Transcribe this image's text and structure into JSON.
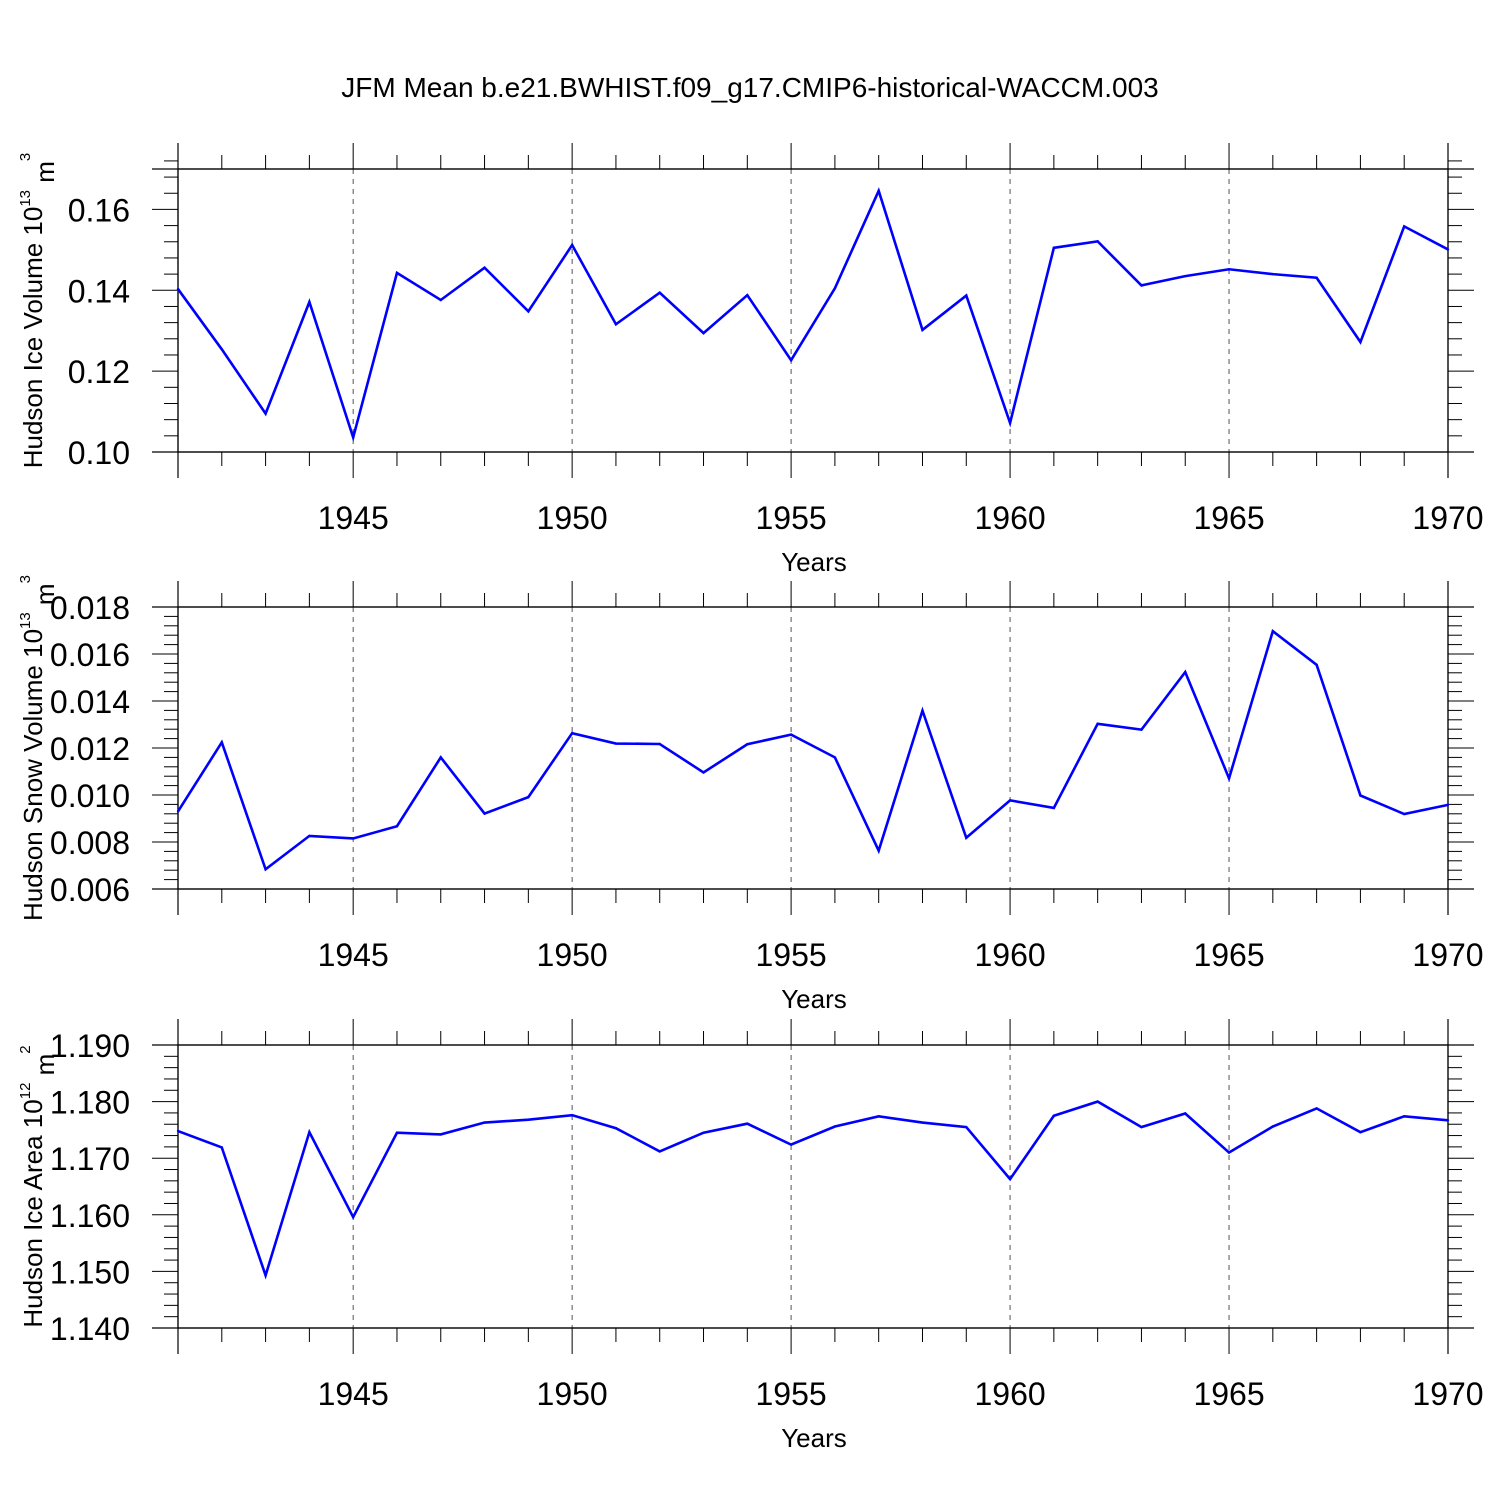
{
  "title": "JFM Mean b.e21.BWHIST.f09_g17.CMIP6-historical-WACCM.003",
  "colors": {
    "line": "#0000ff",
    "axes": "#000000",
    "grid": "#555555"
  },
  "chart_data": [
    {
      "type": "line",
      "ylabel": {
        "text": "Hudson Ice Volume 10",
        "exponent": "13",
        "unit": " m",
        "unit_exponent": "3"
      },
      "xlabel": "Years",
      "xlim": [
        1941,
        1970
      ],
      "ylim": [
        0.1,
        0.17
      ],
      "yticks": [
        "0.10",
        "0.12",
        "0.14",
        "0.16"
      ],
      "xticks": [
        "1945",
        "1950",
        "1955",
        "1960",
        "1965",
        "1970"
      ],
      "x": [
        1941,
        1942,
        1943,
        1944,
        1945,
        1946,
        1947,
        1948,
        1949,
        1950,
        1951,
        1952,
        1953,
        1954,
        1955,
        1956,
        1957,
        1958,
        1959,
        1960,
        1961,
        1962,
        1963,
        1964,
        1965,
        1966,
        1967,
        1968,
        1969,
        1970
      ],
      "values": [
        0.1403,
        0.1254,
        0.1095,
        0.1371,
        0.1036,
        0.1443,
        0.1376,
        0.1456,
        0.1348,
        0.1512,
        0.1316,
        0.1394,
        0.1294,
        0.1388,
        0.1227,
        0.1405,
        0.1646,
        0.1302,
        0.1387,
        0.1072,
        0.1505,
        0.1521,
        0.1412,
        0.1435,
        0.1452,
        0.144,
        0.1431,
        0.1272,
        0.1558,
        0.1501
      ]
    },
    {
      "type": "line",
      "ylabel": {
        "text": "Hudson Snow Volume 10",
        "exponent": "13",
        "unit": " m",
        "unit_exponent": "3"
      },
      "xlabel": "Years",
      "xlim": [
        1941,
        1970
      ],
      "ylim": [
        0.006,
        0.018
      ],
      "yticks": [
        "0.006",
        "0.008",
        "0.010",
        "0.012",
        "0.014",
        "0.016",
        "0.018"
      ],
      "xticks": [
        "1945",
        "1950",
        "1955",
        "1960",
        "1965",
        "1970"
      ],
      "x": [
        1941,
        1942,
        1943,
        1944,
        1945,
        1946,
        1947,
        1948,
        1949,
        1950,
        1951,
        1952,
        1953,
        1954,
        1955,
        1956,
        1957,
        1958,
        1959,
        1960,
        1961,
        1962,
        1963,
        1964,
        1965,
        1966,
        1967,
        1968,
        1969,
        1970
      ],
      "values": [
        0.0093,
        0.01224,
        0.00684,
        0.00826,
        0.00815,
        0.00867,
        0.0116,
        0.00921,
        0.00991,
        0.01263,
        0.01219,
        0.01217,
        0.01096,
        0.01216,
        0.01257,
        0.0116,
        0.00763,
        0.01359,
        0.00818,
        0.00977,
        0.00945,
        0.01303,
        0.01278,
        0.01523,
        0.01071,
        0.01697,
        0.01554,
        0.00998,
        0.00919,
        0.00958
      ]
    },
    {
      "type": "line",
      "ylabel": {
        "text": "Hudson Ice Area 10",
        "exponent": "12",
        "unit": " m",
        "unit_exponent": "2"
      },
      "xlabel": "Years",
      "xlim": [
        1941,
        1970
      ],
      "ylim": [
        1.14,
        1.19
      ],
      "yticks": [
        "1.140",
        "1.150",
        "1.160",
        "1.170",
        "1.180",
        "1.190"
      ],
      "xticks": [
        "1945",
        "1950",
        "1955",
        "1960",
        "1965",
        "1970"
      ],
      "x": [
        1941,
        1942,
        1943,
        1944,
        1945,
        1946,
        1947,
        1948,
        1949,
        1950,
        1951,
        1952,
        1953,
        1954,
        1955,
        1956,
        1957,
        1958,
        1959,
        1960,
        1961,
        1962,
        1963,
        1964,
        1965,
        1966,
        1967,
        1968,
        1969,
        1970
      ],
      "values": [
        1.1748,
        1.1719,
        1.1493,
        1.1746,
        1.1596,
        1.1745,
        1.1742,
        1.1763,
        1.1768,
        1.1776,
        1.1753,
        1.1712,
        1.1745,
        1.1761,
        1.1724,
        1.1756,
        1.1774,
        1.1763,
        1.1755,
        1.1663,
        1.1775,
        1.18,
        1.1755,
        1.1779,
        1.171,
        1.1756,
        1.1788,
        1.1746,
        1.1774,
        1.1767
      ]
    }
  ]
}
